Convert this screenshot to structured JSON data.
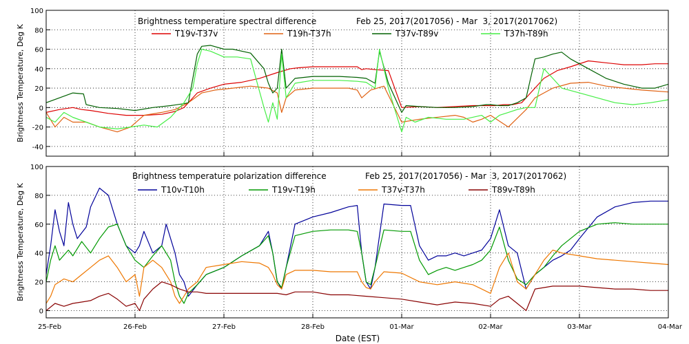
{
  "xlabel": "Date (EST)",
  "x_ticks": [
    "25-Feb",
    "26-Feb",
    "27-Feb",
    "28-Feb",
    "01-Mar",
    "02-Mar",
    "03-Mar",
    "04-Mar"
  ],
  "chart_data": [
    {
      "type": "line",
      "title": "Brightness temperature spectral difference",
      "subtitle": "Feb 25, 2017(2017056) - Mar  3, 2017(2017062)",
      "xlabel": "",
      "ylabel": "Brightness Temperature, Deg K",
      "xlim": [
        0,
        7
      ],
      "ylim": [
        -50,
        100
      ],
      "y_ticks": [
        -40,
        -20,
        0,
        20,
        40,
        60,
        80,
        100
      ],
      "grid": true,
      "legend_position": "top",
      "series": [
        {
          "name": "T19v-T37v",
          "color": "#dd0000",
          "x": [
            0,
            0.15,
            0.3,
            0.4,
            0.5,
            0.7,
            0.9,
            1.1,
            1.3,
            1.45,
            1.55,
            1.6,
            1.7,
            1.85,
            2.0,
            2.2,
            2.4,
            2.6,
            2.75,
            2.85,
            3.0,
            3.2,
            3.4,
            3.5,
            3.55,
            3.6,
            3.7,
            3.85,
            4.0,
            4.2,
            4.4,
            4.6,
            4.8,
            4.95,
            5.05,
            5.15,
            5.25,
            5.35,
            5.45,
            5.6,
            5.75,
            5.9,
            6.1,
            6.3,
            6.5,
            6.7,
            6.85,
            7.0
          ],
          "y": [
            -5,
            -2,
            0,
            -2,
            -3,
            -6,
            -8,
            -8,
            -7,
            -4,
            0,
            5,
            15,
            20,
            24,
            26,
            30,
            36,
            40,
            41,
            42,
            42,
            42,
            42,
            39,
            40,
            39,
            38,
            0,
            1,
            0,
            1,
            2,
            2,
            2,
            3,
            3,
            5,
            15,
            30,
            38,
            42,
            48,
            46,
            44,
            44,
            45,
            45
          ]
        },
        {
          "name": "T19h-T37h",
          "color": "#e06010",
          "x": [
            0,
            0.1,
            0.2,
            0.3,
            0.45,
            0.6,
            0.8,
            0.95,
            1.1,
            1.3,
            1.45,
            1.6,
            1.75,
            1.9,
            2.1,
            2.3,
            2.5,
            2.6,
            2.65,
            2.7,
            2.8,
            3.0,
            3.2,
            3.4,
            3.5,
            3.55,
            3.65,
            3.8,
            4.0,
            4.2,
            4.4,
            4.6,
            4.7,
            4.8,
            4.9,
            5.0,
            5.2,
            5.4,
            5.5,
            5.6,
            5.7,
            5.9,
            6.1,
            6.3,
            6.5,
            6.7,
            7.0
          ],
          "y": [
            -5,
            -20,
            -10,
            -15,
            -15,
            -20,
            -25,
            -20,
            -8,
            -5,
            -2,
            5,
            15,
            18,
            20,
            22,
            20,
            15,
            -5,
            10,
            18,
            20,
            20,
            20,
            18,
            10,
            18,
            22,
            -15,
            -12,
            -10,
            -8,
            -10,
            -15,
            -12,
            -8,
            -20,
            -2,
            10,
            15,
            20,
            25,
            26,
            22,
            20,
            18,
            16
          ]
        },
        {
          "name": "T37v-T89v",
          "color": "#006000",
          "x": [
            0,
            0.15,
            0.3,
            0.42,
            0.45,
            0.6,
            0.8,
            1.0,
            1.2,
            1.4,
            1.55,
            1.6,
            1.65,
            1.7,
            1.75,
            1.85,
            2.0,
            2.1,
            2.3,
            2.45,
            2.5,
            2.55,
            2.6,
            2.65,
            2.7,
            2.8,
            3.0,
            3.3,
            3.5,
            3.6,
            3.7,
            3.75,
            3.85,
            3.95,
            4.0,
            4.05,
            4.2,
            4.4,
            4.6,
            4.8,
            4.95,
            5.0,
            5.1,
            5.2,
            5.3,
            5.4,
            5.5,
            5.6,
            5.7,
            5.8,
            5.9,
            6.1,
            6.3,
            6.5,
            6.7,
            6.85,
            7.0
          ],
          "y": [
            5,
            10,
            15,
            14,
            3,
            0,
            -1,
            -3,
            0,
            2,
            4,
            5,
            30,
            55,
            63,
            64,
            60,
            60,
            56,
            40,
            25,
            15,
            20,
            60,
            20,
            30,
            32,
            32,
            31,
            30,
            25,
            58,
            25,
            5,
            -5,
            2,
            1,
            0,
            0,
            1,
            3,
            3,
            2,
            2,
            5,
            10,
            50,
            52,
            55,
            57,
            50,
            40,
            30,
            24,
            20,
            20,
            24
          ]
        },
        {
          "name": "T37h-T89h",
          "color": "#44ee44",
          "x": [
            0,
            0.1,
            0.2,
            0.3,
            0.45,
            0.6,
            0.8,
            0.95,
            1.1,
            1.25,
            1.4,
            1.55,
            1.65,
            1.7,
            1.75,
            1.85,
            2.0,
            2.15,
            2.3,
            2.45,
            2.5,
            2.55,
            2.6,
            2.65,
            2.7,
            2.8,
            3.0,
            3.3,
            3.5,
            3.6,
            3.7,
            3.75,
            3.85,
            3.95,
            4.0,
            4.05,
            4.15,
            4.3,
            4.5,
            4.7,
            4.9,
            5.0,
            5.1,
            5.2,
            5.3,
            5.4,
            5.5,
            5.55,
            5.6,
            5.7,
            5.8,
            6.0,
            6.2,
            6.4,
            6.6,
            6.8,
            7.0
          ],
          "y": [
            -10,
            -15,
            -5,
            -10,
            -15,
            -20,
            -22,
            -20,
            -18,
            -20,
            -10,
            5,
            20,
            45,
            60,
            58,
            52,
            52,
            50,
            0,
            -15,
            5,
            -12,
            55,
            10,
            25,
            28,
            28,
            27,
            26,
            20,
            60,
            20,
            -10,
            -25,
            -10,
            -15,
            -10,
            -12,
            -12,
            -8,
            -15,
            -8,
            -5,
            -2,
            0,
            0,
            20,
            40,
            30,
            20,
            15,
            10,
            5,
            3,
            5,
            8
          ]
        }
      ]
    },
    {
      "type": "line",
      "title": "Brightness temperature polarization difference",
      "subtitle": "Feb 25, 2017(2017056) - Mar  3, 2017(2017062)",
      "xlabel": "Date (EST)",
      "ylabel": "Brightness Temperature, Deg K",
      "xlim": [
        0,
        7
      ],
      "ylim": [
        -5,
        100
      ],
      "y_ticks": [
        0,
        20,
        40,
        60,
        80,
        100
      ],
      "grid": true,
      "legend_position": "top",
      "series": [
        {
          "name": "T10v-T10h",
          "color": "#000099",
          "x": [
            0,
            0.05,
            0.1,
            0.15,
            0.2,
            0.25,
            0.3,
            0.35,
            0.45,
            0.5,
            0.6,
            0.7,
            0.8,
            0.9,
            1.0,
            1.05,
            1.1,
            1.2,
            1.3,
            1.35,
            1.45,
            1.5,
            1.55,
            1.6,
            1.7,
            1.8,
            2.0,
            2.2,
            2.4,
            2.5,
            2.55,
            2.6,
            2.65,
            2.7,
            2.8,
            3.0,
            3.2,
            3.4,
            3.5,
            3.55,
            3.6,
            3.65,
            3.7,
            3.8,
            4.0,
            4.1,
            4.2,
            4.3,
            4.4,
            4.5,
            4.6,
            4.7,
            4.8,
            4.9,
            5.0,
            5.1,
            5.2,
            5.3,
            5.4,
            5.5,
            5.6,
            5.7,
            5.8,
            5.9,
            6.0,
            6.2,
            6.4,
            6.6,
            6.8,
            7.0
          ],
          "y": [
            25,
            45,
            70,
            55,
            45,
            75,
            60,
            50,
            58,
            72,
            85,
            80,
            60,
            45,
            40,
            45,
            55,
            40,
            45,
            60,
            40,
            25,
            20,
            10,
            18,
            25,
            30,
            38,
            45,
            55,
            40,
            20,
            15,
            30,
            60,
            65,
            68,
            72,
            73,
            40,
            20,
            15,
            30,
            74,
            73,
            73,
            45,
            35,
            38,
            38,
            40,
            38,
            40,
            42,
            50,
            70,
            45,
            40,
            15,
            25,
            30,
            35,
            38,
            42,
            50,
            65,
            72,
            75,
            76,
            76
          ]
        },
        {
          "name": "T19v-T19h",
          "color": "#009900",
          "x": [
            0,
            0.05,
            0.1,
            0.15,
            0.25,
            0.3,
            0.4,
            0.5,
            0.6,
            0.7,
            0.8,
            0.9,
            1.0,
            1.1,
            1.2,
            1.3,
            1.4,
            1.45,
            1.5,
            1.55,
            1.6,
            1.7,
            1.8,
            2.0,
            2.2,
            2.4,
            2.5,
            2.55,
            2.6,
            2.65,
            2.7,
            2.8,
            3.0,
            3.2,
            3.4,
            3.5,
            3.55,
            3.6,
            3.65,
            3.7,
            3.8,
            4.0,
            4.1,
            4.2,
            4.3,
            4.4,
            4.5,
            4.6,
            4.7,
            4.8,
            4.9,
            5.0,
            5.1,
            5.2,
            5.3,
            5.4,
            5.5,
            5.6,
            5.7,
            5.8,
            6.0,
            6.2,
            6.4,
            6.6,
            6.8,
            7.0
          ],
          "y": [
            20,
            35,
            45,
            35,
            42,
            38,
            48,
            40,
            50,
            58,
            60,
            45,
            35,
            30,
            38,
            45,
            35,
            20,
            10,
            5,
            12,
            18,
            25,
            30,
            38,
            45,
            52,
            40,
            20,
            16,
            30,
            52,
            55,
            56,
            56,
            55,
            40,
            20,
            18,
            30,
            56,
            55,
            55,
            35,
            25,
            28,
            30,
            28,
            30,
            32,
            35,
            42,
            58,
            35,
            22,
            18,
            25,
            30,
            38,
            45,
            55,
            60,
            61,
            60,
            60,
            60
          ]
        },
        {
          "name": "T37v-T37h",
          "color": "#ee7700",
          "x": [
            0,
            0.05,
            0.1,
            0.2,
            0.3,
            0.4,
            0.5,
            0.6,
            0.7,
            0.8,
            0.9,
            1.0,
            1.05,
            1.1,
            1.2,
            1.3,
            1.4,
            1.45,
            1.5,
            1.55,
            1.6,
            1.7,
            1.8,
            2.0,
            2.2,
            2.4,
            2.5,
            2.55,
            2.6,
            2.65,
            2.7,
            2.8,
            3.0,
            3.2,
            3.4,
            3.5,
            3.55,
            3.6,
            3.65,
            3.7,
            3.8,
            4.0,
            4.2,
            4.4,
            4.6,
            4.8,
            4.9,
            5.0,
            5.1,
            5.2,
            5.3,
            5.4,
            5.5,
            5.6,
            5.7,
            5.8,
            6.0,
            6.2,
            6.4,
            6.6,
            6.8,
            7.0
          ],
          "y": [
            5,
            10,
            18,
            22,
            20,
            25,
            30,
            35,
            38,
            30,
            20,
            25,
            10,
            30,
            35,
            30,
            20,
            10,
            5,
            10,
            15,
            20,
            30,
            32,
            34,
            33,
            30,
            25,
            18,
            15,
            25,
            28,
            28,
            27,
            27,
            27,
            20,
            16,
            15,
            20,
            27,
            26,
            20,
            18,
            20,
            18,
            15,
            12,
            30,
            40,
            20,
            15,
            25,
            35,
            42,
            40,
            38,
            36,
            35,
            34,
            33,
            32
          ]
        },
        {
          "name": "T89v-T89h",
          "color": "#880000",
          "x": [
            0,
            0.1,
            0.2,
            0.3,
            0.4,
            0.5,
            0.6,
            0.7,
            0.8,
            0.9,
            1.0,
            1.05,
            1.1,
            1.2,
            1.3,
            1.4,
            1.5,
            1.6,
            1.7,
            1.8,
            2.0,
            2.2,
            2.4,
            2.5,
            2.6,
            2.7,
            2.8,
            3.0,
            3.2,
            3.4,
            3.6,
            3.8,
            4.0,
            4.2,
            4.4,
            4.6,
            4.8,
            5.0,
            5.1,
            5.2,
            5.3,
            5.4,
            5.5,
            5.6,
            5.7,
            5.8,
            6.0,
            6.2,
            6.4,
            6.6,
            6.8,
            7.0
          ],
          "y": [
            0,
            5,
            3,
            5,
            6,
            7,
            10,
            12,
            8,
            3,
            5,
            0,
            8,
            15,
            20,
            18,
            15,
            13,
            13,
            12,
            12,
            12,
            12,
            12,
            12,
            11,
            13,
            13,
            11,
            11,
            10,
            9,
            8,
            6,
            4,
            6,
            5,
            3,
            8,
            10,
            5,
            0,
            15,
            16,
            17,
            17,
            17,
            16,
            15,
            15,
            14,
            14
          ]
        }
      ]
    }
  ]
}
